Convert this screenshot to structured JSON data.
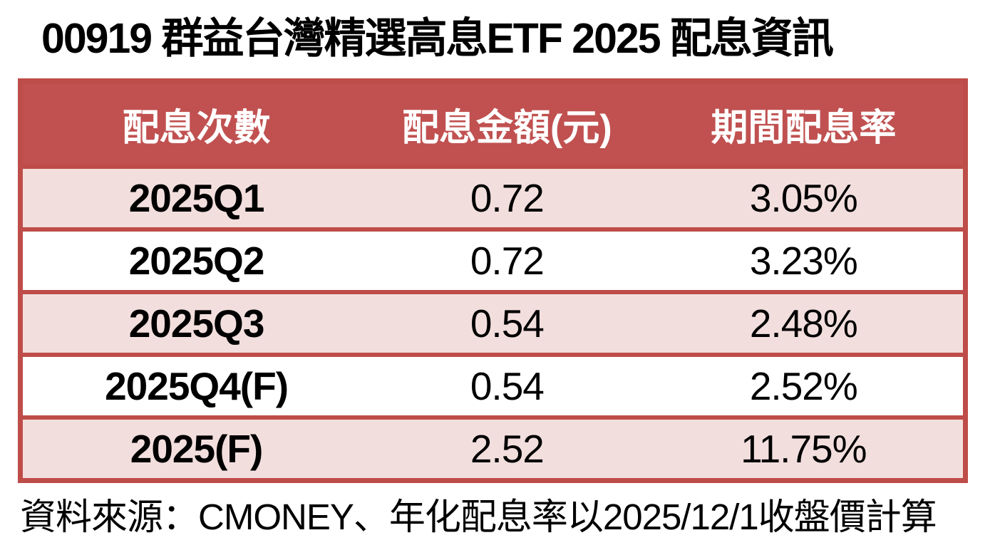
{
  "title": "00919 群益台灣精選高息ETF 2025 配息資訊",
  "table": {
    "headers": [
      "配息次數",
      "配息金額(元)",
      "期間配息率"
    ],
    "rows": [
      {
        "period": "2025Q1",
        "amount": "0.72",
        "yield": "3.05%"
      },
      {
        "period": "2025Q2",
        "amount": "0.72",
        "yield": "3.23%"
      },
      {
        "period": "2025Q3",
        "amount": "0.54",
        "yield": "2.48%"
      },
      {
        "period": "2025Q4(F)",
        "amount": "0.54",
        "yield": "2.52%"
      },
      {
        "period": "2025(F)",
        "amount": "2.52",
        "yield": "11.75%"
      }
    ]
  },
  "footer": {
    "source_note": "資料來源：CMONEY、年化配息率以2025/12/1收盤價計算"
  },
  "colors": {
    "header_bg": "#C05150",
    "border_red": "#BE4C48",
    "row_pink": "#F2DFDD",
    "row_white": "#FFFFFF",
    "text": "#000000",
    "header_text": "#FFFFFF"
  },
  "chart_data": {
    "type": "table",
    "title": "00919 群益台灣精選高息ETF 2025 配息資訊",
    "columns": [
      "配息次數",
      "配息金額(元)",
      "期間配息率"
    ],
    "rows": [
      [
        "2025Q1",
        0.72,
        "3.05%"
      ],
      [
        "2025Q2",
        0.72,
        "3.23%"
      ],
      [
        "2025Q3",
        0.54,
        "2.48%"
      ],
      [
        "2025Q4(F)",
        0.54,
        "2.52%"
      ],
      [
        "2025(F)",
        2.52,
        "11.75%"
      ]
    ],
    "source": "資料來源：CMONEY、年化配息率以2025/12/1收盤價計算"
  }
}
